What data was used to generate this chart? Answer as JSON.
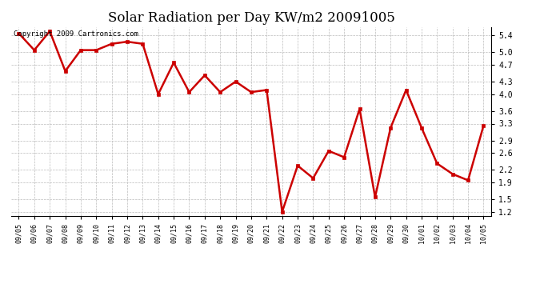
{
  "title": "Solar Radiation per Day KW/m2 20091005",
  "copyright_text": "Copyright 2009 Cartronics.com",
  "dates": [
    "09/05",
    "09/06",
    "09/07",
    "09/08",
    "09/09",
    "09/10",
    "09/11",
    "09/12",
    "09/13",
    "09/14",
    "09/15",
    "09/16",
    "09/17",
    "09/18",
    "09/19",
    "09/20",
    "09/21",
    "09/22",
    "09/23",
    "09/24",
    "09/25",
    "09/26",
    "09/27",
    "09/28",
    "09/29",
    "09/30",
    "10/01",
    "10/02",
    "10/03",
    "10/04",
    "10/05"
  ],
  "values": [
    5.45,
    5.05,
    5.5,
    4.55,
    5.05,
    5.05,
    5.2,
    5.25,
    5.2,
    4.0,
    4.75,
    4.05,
    4.45,
    4.05,
    4.3,
    4.05,
    4.1,
    1.2,
    2.3,
    2.0,
    2.65,
    2.5,
    3.65,
    1.55,
    3.2,
    4.1,
    3.2,
    2.35,
    2.1,
    1.95,
    3.25
  ],
  "line_color": "#cc0000",
  "marker": "s",
  "marker_size": 2.5,
  "line_width": 1.8,
  "ylim": [
    1.1,
    5.6
  ],
  "yticks": [
    1.2,
    1.5,
    1.9,
    2.2,
    2.6,
    2.9,
    3.3,
    3.6,
    4.0,
    4.3,
    4.7,
    5.0,
    5.4
  ],
  "grid_color": "#bbbbbb",
  "bg_color": "#ffffff",
  "title_fontsize": 12,
  "copyright_fontsize": 6.5
}
